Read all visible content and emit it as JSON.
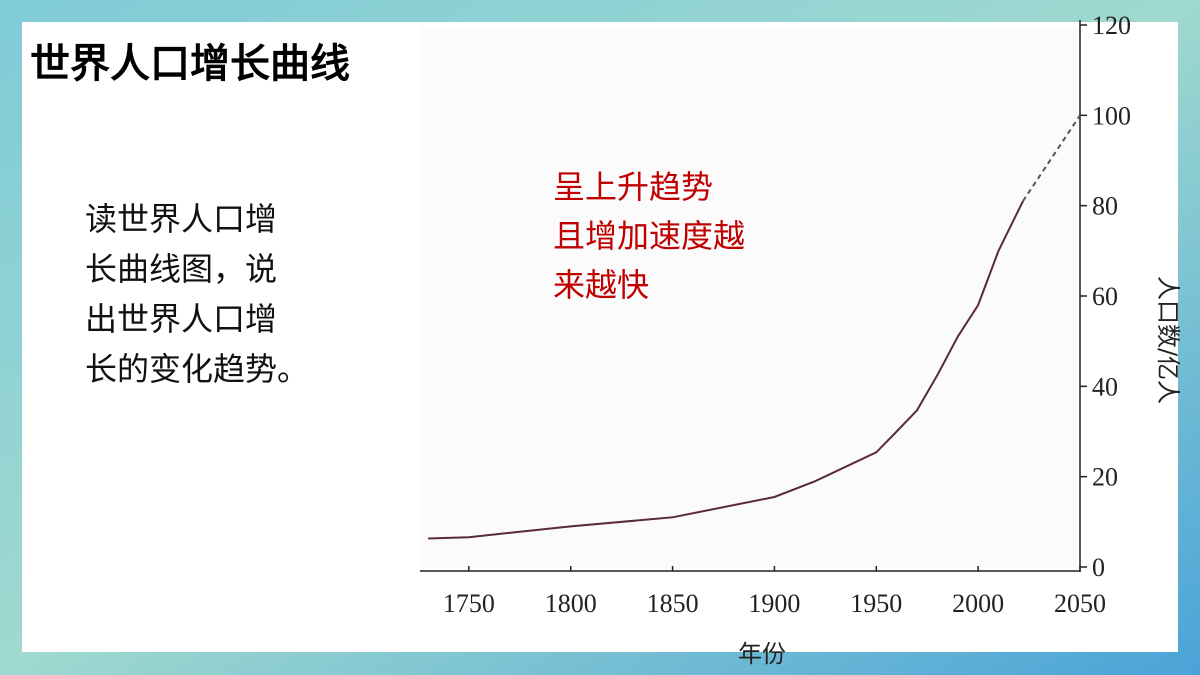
{
  "slide": {
    "title": "世界人口增长曲线",
    "question": [
      "读世界人口增",
      "长曲线图，说",
      "出世界人口增",
      "长的变化趋势。"
    ]
  },
  "chart_data": {
    "type": "line",
    "annotation": [
      "呈上升趋势",
      "且增加速度越",
      "来越快"
    ],
    "x_label": "年份",
    "y_label": "人口数/亿人",
    "x": [
      1730,
      1750,
      1800,
      1850,
      1900,
      1920,
      1950,
      1960,
      1970,
      1980,
      1990,
      2000,
      2010,
      2022,
      2050
    ],
    "series": [
      {
        "color": "#5a2a35",
        "dashed": false,
        "values": [
          6.3,
          6.6,
          9,
          11,
          15.5,
          19,
          25.4,
          30,
          34.7,
          42.5,
          51,
          58,
          70,
          81,
          null
        ]
      },
      {
        "color": "#555555",
        "dashed": true,
        "values": [
          null,
          null,
          null,
          null,
          null,
          null,
          null,
          null,
          null,
          null,
          null,
          null,
          null,
          81,
          100
        ]
      }
    ],
    "xlim": [
      1727,
      2050
    ],
    "ylim": [
      0,
      120
    ],
    "xticks": [
      1750,
      1800,
      1850,
      1900,
      1950,
      2000,
      2050
    ],
    "yticks": [
      0,
      20,
      40,
      60,
      80,
      100,
      120
    ],
    "y_axis_side": "right",
    "grid": false
  }
}
